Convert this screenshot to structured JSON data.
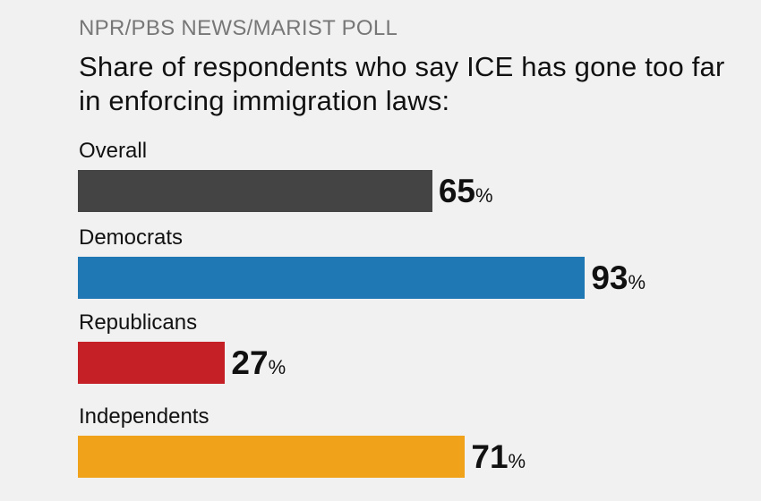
{
  "chart_data": {
    "type": "bar",
    "orientation": "horizontal",
    "source": "NPR/PBS NEWS/MARIST POLL",
    "title": "Share of respondents who say ICE has gone too far in enforcing immigration laws:",
    "categories": [
      "Overall",
      "Democrats",
      "Republicans",
      "Independents"
    ],
    "values": [
      65,
      93,
      27,
      71
    ],
    "value_suffix": "%",
    "colors": [
      "#444444",
      "#1f78b4",
      "#c52026",
      "#f0a31a"
    ],
    "xlim": [
      0,
      100
    ],
    "grid": false,
    "legend": "none"
  }
}
